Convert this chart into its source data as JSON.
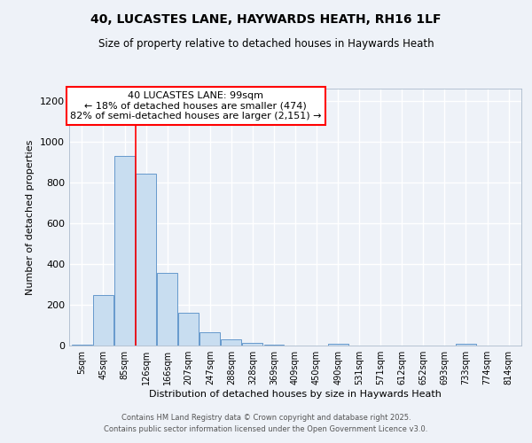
{
  "title1": "40, LUCASTES LANE, HAYWARDS HEATH, RH16 1LF",
  "title2": "Size of property relative to detached houses in Haywards Heath",
  "xlabel": "Distribution of detached houses by size in Haywards Heath",
  "ylabel": "Number of detached properties",
  "categories": [
    "5sqm",
    "45sqm",
    "85sqm",
    "126sqm",
    "166sqm",
    "207sqm",
    "247sqm",
    "288sqm",
    "328sqm",
    "369sqm",
    "409sqm",
    "450sqm",
    "490sqm",
    "531sqm",
    "571sqm",
    "612sqm",
    "652sqm",
    "693sqm",
    "733sqm",
    "774sqm",
    "814sqm"
  ],
  "values": [
    5,
    248,
    930,
    845,
    355,
    160,
    65,
    30,
    13,
    5,
    1,
    0,
    8,
    0,
    0,
    0,
    0,
    0,
    8,
    0,
    0
  ],
  "bar_color": "#c8ddf0",
  "bar_edge_color": "#6699cc",
  "red_line_x": 2.5,
  "annotation_text": "40 LUCASTES LANE: 99sqm\n← 18% of detached houses are smaller (474)\n82% of semi-detached houses are larger (2,151) →",
  "annotation_box_color": "white",
  "annotation_edge_color": "red",
  "ylim": [
    0,
    1260
  ],
  "yticks": [
    0,
    200,
    400,
    600,
    800,
    1000,
    1200
  ],
  "background_color": "#eef2f8",
  "grid_color": "white",
  "footer1": "Contains HM Land Registry data © Crown copyright and database right 2025.",
  "footer2": "Contains public sector information licensed under the Open Government Licence v3.0."
}
